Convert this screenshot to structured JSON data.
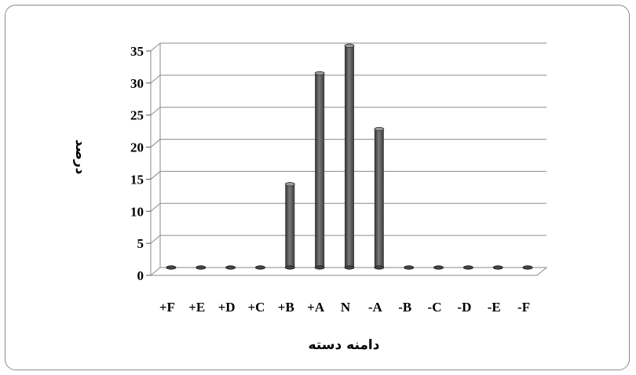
{
  "chart_data": {
    "type": "bar",
    "title": "",
    "xlabel": "دامنه دسته",
    "ylabel": "درصد",
    "categories": [
      "+F",
      "+E",
      "+D",
      "+C",
      "+B",
      "+A",
      "N",
      "-A",
      "-B",
      "-C",
      "-D",
      "-E",
      "-F"
    ],
    "values": [
      0,
      0,
      0,
      0,
      13,
      30.3,
      34.6,
      21.6,
      0,
      0,
      0,
      0,
      0
    ],
    "ylim": [
      0,
      35
    ],
    "yticks": [
      0,
      5,
      10,
      15,
      20,
      25,
      30,
      35
    ],
    "grid": true,
    "legend": "none",
    "bar_color": "#5a5a5a"
  }
}
